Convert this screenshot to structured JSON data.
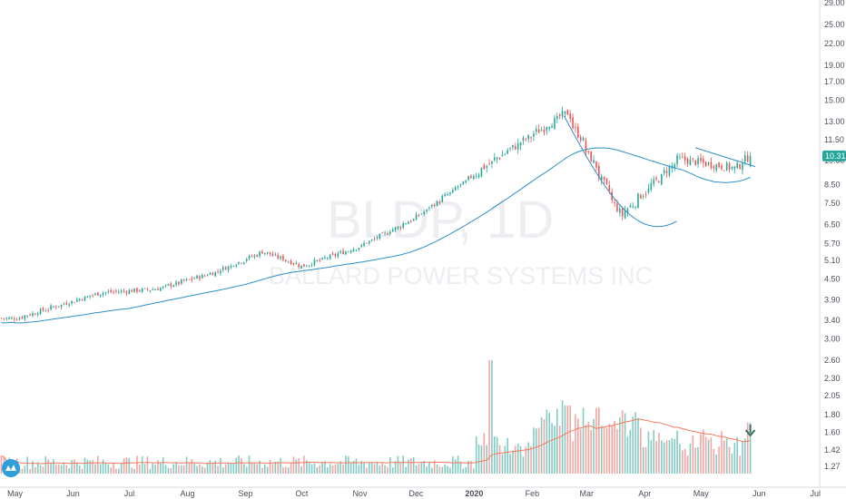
{
  "chart_data": {
    "type": "candlestick",
    "watermark": {
      "symbol": "BLDP, 1D",
      "name": "BALLARD POWER SYSTEMS INC"
    },
    "y_axis": {
      "scale": "log",
      "ticks": [
        "29.00",
        "25.00",
        "22.00",
        "19.00",
        "17.00",
        "15.00",
        "13.00",
        "11.50",
        "10.00",
        "8.50",
        "7.50",
        "6.50",
        "5.70",
        "5.10",
        "4.50",
        "3.90",
        "3.40",
        "3.00",
        "2.60",
        "2.30",
        "2.05",
        "1.80",
        "1.60",
        "1.42",
        "1.27"
      ]
    },
    "x_axis": {
      "ticks": [
        "May",
        "Jun",
        "Jul",
        "Aug",
        "Sep",
        "Oct",
        "Nov",
        "Dec",
        "2020",
        "Feb",
        "Mar",
        "Apr",
        "May",
        "Jun",
        "Jul"
      ],
      "bold_ticks": [
        "2020"
      ]
    },
    "last_price": "10.31",
    "colors": {
      "up": "#26a69a",
      "down": "#ef5350",
      "volume_up": "#80cbc4",
      "volume_down": "#f5a3a0",
      "ma": "#2f8fc9",
      "volume_ma": "#f4795b",
      "arrow": "#3b6e5e",
      "price_label": "#26a69a"
    },
    "key_closes": [
      {
        "date": "2019-05-01",
        "close": 3.45
      },
      {
        "date": "2019-06-15",
        "close": 4.1
      },
      {
        "date": "2019-07-15",
        "close": 4.2
      },
      {
        "date": "2019-08-15",
        "close": 4.7
      },
      {
        "date": "2019-09-10",
        "close": 5.4
      },
      {
        "date": "2019-10-01",
        "close": 4.9
      },
      {
        "date": "2019-11-01",
        "close": 5.6
      },
      {
        "date": "2019-12-01",
        "close": 6.8
      },
      {
        "date": "2020-01-15",
        "close": 10.3
      },
      {
        "date": "2020-02-20",
        "close": 13.8
      },
      {
        "date": "2020-03-20",
        "close": 6.9
      },
      {
        "date": "2020-04-20",
        "close": 10.1
      },
      {
        "date": "2020-05-20",
        "close": 9.5
      },
      {
        "date": "2020-05-28",
        "close": 10.31
      }
    ],
    "volume_scale": "relative",
    "notable_volume_spikes": [
      {
        "date": "2020-01-10",
        "relative": 1.0
      },
      {
        "date": "2020-02-20",
        "relative": 0.6
      },
      {
        "date": "2020-05-28",
        "relative": 0.45
      }
    ],
    "pattern": "cup-and-handle",
    "grid": false
  }
}
